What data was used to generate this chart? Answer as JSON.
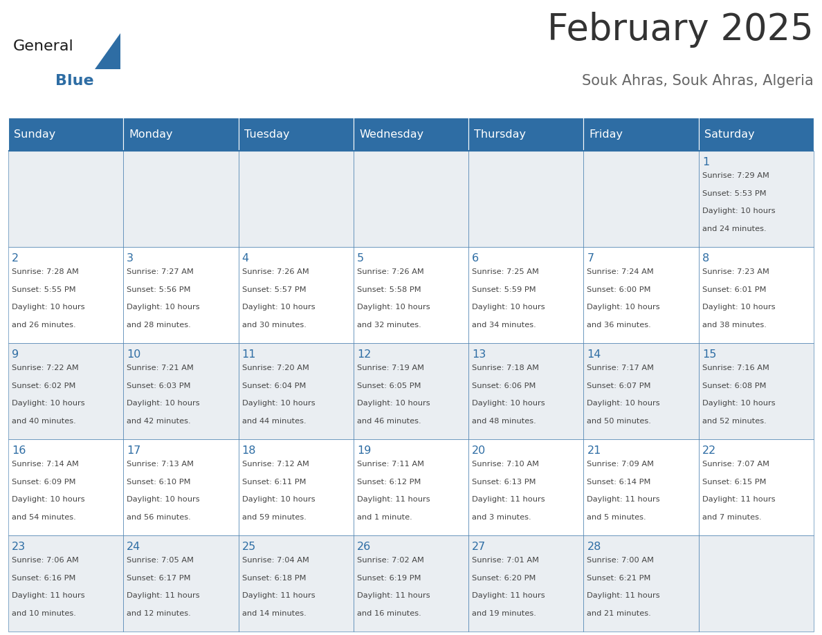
{
  "title": "February 2025",
  "subtitle": "Souk Ahras, Souk Ahras, Algeria",
  "days_of_week": [
    "Sunday",
    "Monday",
    "Tuesday",
    "Wednesday",
    "Thursday",
    "Friday",
    "Saturday"
  ],
  "header_bg": "#2E6DA4",
  "header_text": "#FFFFFF",
  "row_bg_odd": "#EAEEF2",
  "row_bg_even": "#FFFFFF",
  "border_color": "#2E6DA4",
  "day_num_color": "#2E6DA4",
  "info_color": "#444444",
  "title_color": "#333333",
  "subtitle_color": "#666666",
  "logo_general_color": "#1a1a1a",
  "logo_blue_color": "#2E6DA4",
  "calendar_data": [
    [
      null,
      null,
      null,
      null,
      null,
      null,
      {
        "day": "1",
        "sunrise": "7:29 AM",
        "sunset": "5:53 PM",
        "daylight": "10 hours",
        "daylight2": "and 24 minutes."
      }
    ],
    [
      {
        "day": "2",
        "sunrise": "7:28 AM",
        "sunset": "5:55 PM",
        "daylight": "10 hours",
        "daylight2": "and 26 minutes."
      },
      {
        "day": "3",
        "sunrise": "7:27 AM",
        "sunset": "5:56 PM",
        "daylight": "10 hours",
        "daylight2": "and 28 minutes."
      },
      {
        "day": "4",
        "sunrise": "7:26 AM",
        "sunset": "5:57 PM",
        "daylight": "10 hours",
        "daylight2": "and 30 minutes."
      },
      {
        "day": "5",
        "sunrise": "7:26 AM",
        "sunset": "5:58 PM",
        "daylight": "10 hours",
        "daylight2": "and 32 minutes."
      },
      {
        "day": "6",
        "sunrise": "7:25 AM",
        "sunset": "5:59 PM",
        "daylight": "10 hours",
        "daylight2": "and 34 minutes."
      },
      {
        "day": "7",
        "sunrise": "7:24 AM",
        "sunset": "6:00 PM",
        "daylight": "10 hours",
        "daylight2": "and 36 minutes."
      },
      {
        "day": "8",
        "sunrise": "7:23 AM",
        "sunset": "6:01 PM",
        "daylight": "10 hours",
        "daylight2": "and 38 minutes."
      }
    ],
    [
      {
        "day": "9",
        "sunrise": "7:22 AM",
        "sunset": "6:02 PM",
        "daylight": "10 hours",
        "daylight2": "and 40 minutes."
      },
      {
        "day": "10",
        "sunrise": "7:21 AM",
        "sunset": "6:03 PM",
        "daylight": "10 hours",
        "daylight2": "and 42 minutes."
      },
      {
        "day": "11",
        "sunrise": "7:20 AM",
        "sunset": "6:04 PM",
        "daylight": "10 hours",
        "daylight2": "and 44 minutes."
      },
      {
        "day": "12",
        "sunrise": "7:19 AM",
        "sunset": "6:05 PM",
        "daylight": "10 hours",
        "daylight2": "and 46 minutes."
      },
      {
        "day": "13",
        "sunrise": "7:18 AM",
        "sunset": "6:06 PM",
        "daylight": "10 hours",
        "daylight2": "and 48 minutes."
      },
      {
        "day": "14",
        "sunrise": "7:17 AM",
        "sunset": "6:07 PM",
        "daylight": "10 hours",
        "daylight2": "and 50 minutes."
      },
      {
        "day": "15",
        "sunrise": "7:16 AM",
        "sunset": "6:08 PM",
        "daylight": "10 hours",
        "daylight2": "and 52 minutes."
      }
    ],
    [
      {
        "day": "16",
        "sunrise": "7:14 AM",
        "sunset": "6:09 PM",
        "daylight": "10 hours",
        "daylight2": "and 54 minutes."
      },
      {
        "day": "17",
        "sunrise": "7:13 AM",
        "sunset": "6:10 PM",
        "daylight": "10 hours",
        "daylight2": "and 56 minutes."
      },
      {
        "day": "18",
        "sunrise": "7:12 AM",
        "sunset": "6:11 PM",
        "daylight": "10 hours",
        "daylight2": "and 59 minutes."
      },
      {
        "day": "19",
        "sunrise": "7:11 AM",
        "sunset": "6:12 PM",
        "daylight": "11 hours",
        "daylight2": "and 1 minute."
      },
      {
        "day": "20",
        "sunrise": "7:10 AM",
        "sunset": "6:13 PM",
        "daylight": "11 hours",
        "daylight2": "and 3 minutes."
      },
      {
        "day": "21",
        "sunrise": "7:09 AM",
        "sunset": "6:14 PM",
        "daylight": "11 hours",
        "daylight2": "and 5 minutes."
      },
      {
        "day": "22",
        "sunrise": "7:07 AM",
        "sunset": "6:15 PM",
        "daylight": "11 hours",
        "daylight2": "and 7 minutes."
      }
    ],
    [
      {
        "day": "23",
        "sunrise": "7:06 AM",
        "sunset": "6:16 PM",
        "daylight": "11 hours",
        "daylight2": "and 10 minutes."
      },
      {
        "day": "24",
        "sunrise": "7:05 AM",
        "sunset": "6:17 PM",
        "daylight": "11 hours",
        "daylight2": "and 12 minutes."
      },
      {
        "day": "25",
        "sunrise": "7:04 AM",
        "sunset": "6:18 PM",
        "daylight": "11 hours",
        "daylight2": "and 14 minutes."
      },
      {
        "day": "26",
        "sunrise": "7:02 AM",
        "sunset": "6:19 PM",
        "daylight": "11 hours",
        "daylight2": "and 16 minutes."
      },
      {
        "day": "27",
        "sunrise": "7:01 AM",
        "sunset": "6:20 PM",
        "daylight": "11 hours",
        "daylight2": "and 19 minutes."
      },
      {
        "day": "28",
        "sunrise": "7:00 AM",
        "sunset": "6:21 PM",
        "daylight": "11 hours",
        "daylight2": "and 21 minutes."
      },
      null
    ]
  ]
}
